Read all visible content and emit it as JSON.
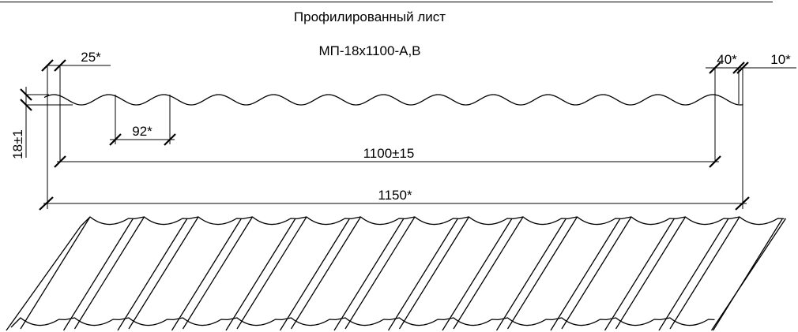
{
  "title": {
    "line1": "Профилированный лист",
    "line2": "МП-18х1100-А,В"
  },
  "dimensions": {
    "edge_left": "25*",
    "pitch": "92*",
    "height": "18±1",
    "edge_right": "40*",
    "edge_end": "10*",
    "working_width": "1100±15",
    "overall_width": "1150*"
  },
  "colors": {
    "line": "#000000",
    "background": "#ffffff"
  }
}
